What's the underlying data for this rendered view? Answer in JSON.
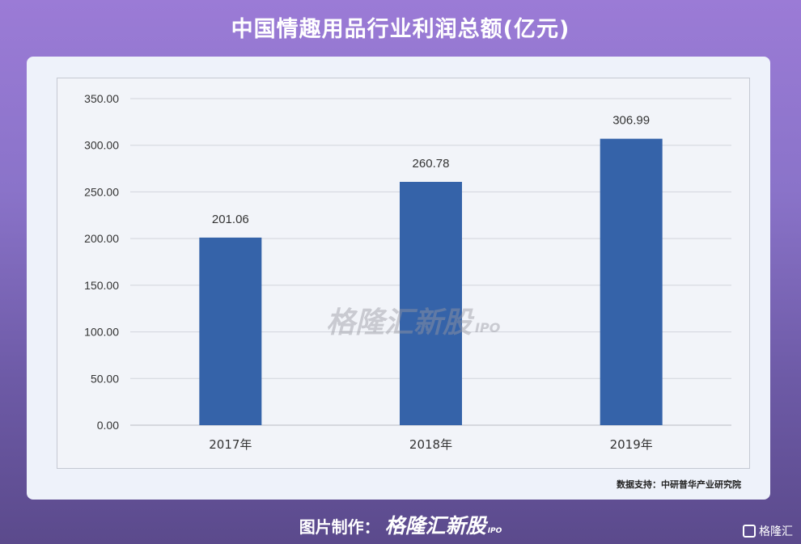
{
  "chart_data": {
    "type": "bar",
    "title": "中国情趣用品行业利润总额(亿元)",
    "categories": [
      "2017年",
      "2018年",
      "2019年"
    ],
    "values": [
      201.06,
      260.78,
      306.99
    ],
    "data_labels": [
      "201.06",
      "260.78",
      "306.99"
    ],
    "ylim": [
      0,
      350
    ],
    "yticks": [
      "0.00",
      "50.00",
      "100.00",
      "150.00",
      "200.00",
      "250.00",
      "300.00",
      "350.00"
    ],
    "grid": true,
    "bar_color": "#3563a9"
  },
  "source": "数据支持：中研普华产业研究院",
  "watermark": {
    "brand": "格隆汇新股",
    "suffix": "IPO"
  },
  "footer": {
    "prefix": "图片制作：",
    "brand": "格隆汇新股",
    "suffix": "IPO"
  },
  "corner_logo": "格隆汇"
}
